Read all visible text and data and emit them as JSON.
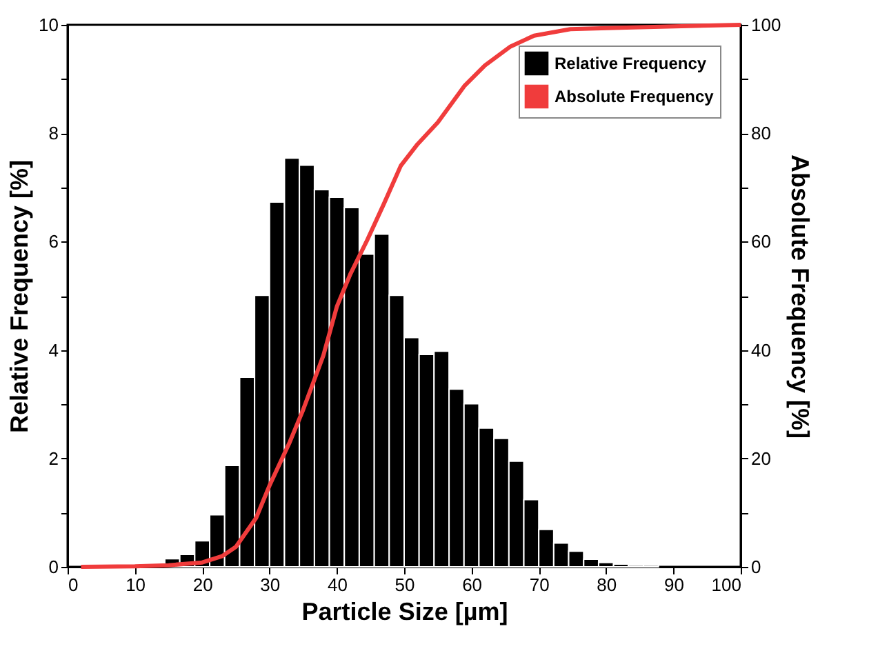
{
  "chart_data": {
    "type": "histogram",
    "xlabel": "Particle Size [µm]",
    "ylabel": "Relative Frequency [%]",
    "y2label": "Absolute Frequency [%]",
    "bins": [
      12.22,
      14.44,
      16.67,
      18.89,
      21.11,
      23.33,
      25.56,
      27.78,
      30.0,
      32.22,
      34.44,
      36.67,
      38.89,
      41.11,
      43.33,
      45.56,
      47.78,
      50.0,
      52.22,
      54.44,
      56.67,
      58.89,
      61.11,
      63.33,
      65.56,
      67.78,
      70.0,
      72.22,
      74.44,
      76.67,
      78.89,
      81.11,
      83.33,
      85.56,
      87.78
    ],
    "series": [
      {
        "name": "Relative Frequency",
        "color": "#000000",
        "values": [
          null,
          0.15,
          0.23,
          0.48,
          0.96,
          1.87,
          3.5,
          5.01,
          6.73,
          7.54,
          7.41,
          6.96,
          6.82,
          6.63,
          5.77,
          6.14,
          5.01,
          4.23,
          3.92,
          3.98,
          3.28,
          3.01,
          2.56,
          2.37,
          1.95,
          1.24,
          0.69,
          0.44,
          0.29,
          0.14,
          0.08,
          0.05,
          0.03,
          0.03
        ]
      },
      {
        "name": "Absolute Frequency",
        "type": "line",
        "axis": "y2",
        "color": "#f03c3c",
        "x": [
          2,
          10,
          15,
          20,
          23,
          25,
          28,
          30,
          33,
          35,
          38,
          40,
          42,
          44.4,
          47,
          49.5,
          52,
          55,
          59,
          62,
          65.8,
          69.3,
          74.7,
          83,
          100
        ],
        "values": [
          0,
          0.1,
          0.3,
          0.8,
          2,
          3.7,
          9,
          15,
          23,
          29,
          39,
          48,
          54,
          60,
          67,
          74,
          78,
          82,
          88.8,
          92.5,
          96,
          98,
          99.2,
          99.5,
          100
        ]
      }
    ],
    "xlim": [
      0,
      100
    ],
    "xticks": [
      0,
      10,
      20,
      30,
      40,
      50,
      60,
      70,
      80,
      90,
      100
    ],
    "ylim": [
      0,
      10
    ],
    "yticks": [
      0,
      {
        "value": 1,
        "label": null
      },
      2,
      {
        "value": 3,
        "label": null
      },
      4,
      {
        "value": 5,
        "label": null
      },
      6,
      {
        "value": 7,
        "label": null
      },
      8,
      {
        "value": 9,
        "label": null
      },
      10
    ],
    "y2lim": [
      0,
      100
    ],
    "y2ticks": [
      0,
      {
        "value": 10,
        "label": null
      },
      20,
      {
        "value": 30,
        "label": null
      },
      40,
      {
        "value": 50,
        "label": null
      },
      60,
      {
        "value": 70,
        "label": null
      },
      80,
      {
        "value": 90,
        "label": null
      },
      100
    ],
    "grid": false,
    "legend": "top right"
  }
}
